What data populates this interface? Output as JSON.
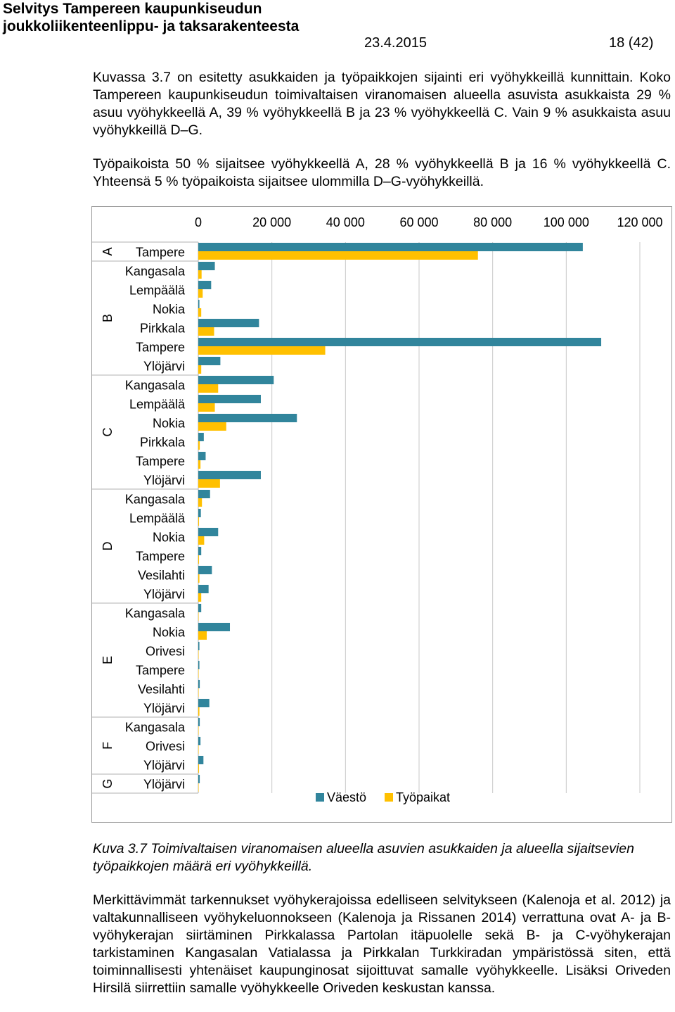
{
  "header": {
    "title_line1": "Selvitys Tampereen kaupunkiseudun",
    "title_line2": "joukkoliikenteenlippu- ja taksarakenteesta",
    "date": "23.4.2015",
    "page": "18 (42)"
  },
  "paragraphs": {
    "p1": "Kuvassa 3.7 on esitetty asukkaiden ja työpaikkojen sijainti eri vyöhykkeillä kunnittain. Koko Tampereen kaupunkiseudun toimivaltaisen viranomaisen alueella asuvista asukkaista 29 % asuu vyöhykkeellä A, 39 % vyöhykkeellä B ja 23 % vyöhykkeellä C. Vain 9 % asukkaista asuu vyöhykkeillä D–G.",
    "p2": "Työpaikoista 50 % sijaitsee vyöhykkeellä A, 28 % vyöhykkeellä B ja 16 % vyöhykkeellä C. Yhteensä 5 % työpaikoista sijaitsee ulommilla D–G-vyöhykkeillä.",
    "caption": "Kuva 3.7 Toimivaltaisen viranomaisen alueella asuvien asukkaiden ja alueella sijaitsevien työpaikkojen määrä eri vyöhykkeillä.",
    "p3": "Merkittävimmät tarkennukset vyöhykerajoissa edelliseen selvitykseen (Kalenoja et al. 2012) ja valtakunnalliseen vyöhykeluonnokseen (Kalenoja ja Rissanen 2014) verrattuna ovat A- ja B-vyöhykerajan siirtäminen Pirkkalassa Partolan itäpuolelle sekä B- ja C-vyöhykerajan tarkistaminen Kangasalan Vatialassa ja Pirkkalan Turkkiradan ympäristössä siten, että toiminnallisesti yhtenäiset kaupunginosat sijoittuvat samalle vyöhykkeelle. Lisäksi Oriveden Hirsilä siirrettiin samalle vyöhykkeelle Oriveden keskustan kanssa."
  },
  "chart_data": {
    "type": "bar",
    "orientation": "horizontal",
    "x_ticks": [
      "0",
      "20 000",
      "40 000",
      "60 000",
      "80 000",
      "100 000",
      "120 000"
    ],
    "xlim": [
      0,
      120000
    ],
    "axis_position": "top",
    "grid": true,
    "legend_position": "bottom",
    "zones": [
      {
        "name": "A",
        "count": 1
      },
      {
        "name": "B",
        "count": 6
      },
      {
        "name": "C",
        "count": 6
      },
      {
        "name": "D",
        "count": 6
      },
      {
        "name": "E",
        "count": 6
      },
      {
        "name": "F",
        "count": 3
      },
      {
        "name": "G",
        "count": 1
      }
    ],
    "categories": [
      "Tampere",
      "Kangasala",
      "Lempäälä",
      "Nokia",
      "Pirkkala",
      "Tampere",
      "Ylöjärvi",
      "Kangasala",
      "Lempäälä",
      "Nokia",
      "Pirkkala",
      "Tampere",
      "Ylöjärvi",
      "Kangasala",
      "Lempäälä",
      "Nokia",
      "Tampere",
      "Vesilahti",
      "Ylöjärvi",
      "Kangasala",
      "Nokia",
      "Orivesi",
      "Tampere",
      "Vesilahti",
      "Ylöjärvi",
      "Kangasala",
      "Orivesi",
      "Ylöjärvi",
      "Ylöjärvi"
    ],
    "series": [
      {
        "name": "Väestö",
        "color": "#31859c",
        "values": [
          104500,
          4500,
          3500,
          300,
          16500,
          109500,
          6000,
          20500,
          17000,
          26800,
          1500,
          2000,
          17000,
          3200,
          700,
          5400,
          800,
          3700,
          2800,
          800,
          8600,
          300,
          300,
          400,
          3000,
          400,
          600,
          1400,
          400
        ]
      },
      {
        "name": "Työpaikat",
        "color": "#ffc000",
        "values": [
          76000,
          900,
          1200,
          800,
          4300,
          34500,
          800,
          5400,
          4500,
          7600,
          400,
          600,
          5900,
          1000,
          200,
          1600,
          200,
          300,
          800,
          100,
          2300,
          100,
          100,
          100,
          300,
          100,
          100,
          200,
          100
        ]
      }
    ]
  }
}
